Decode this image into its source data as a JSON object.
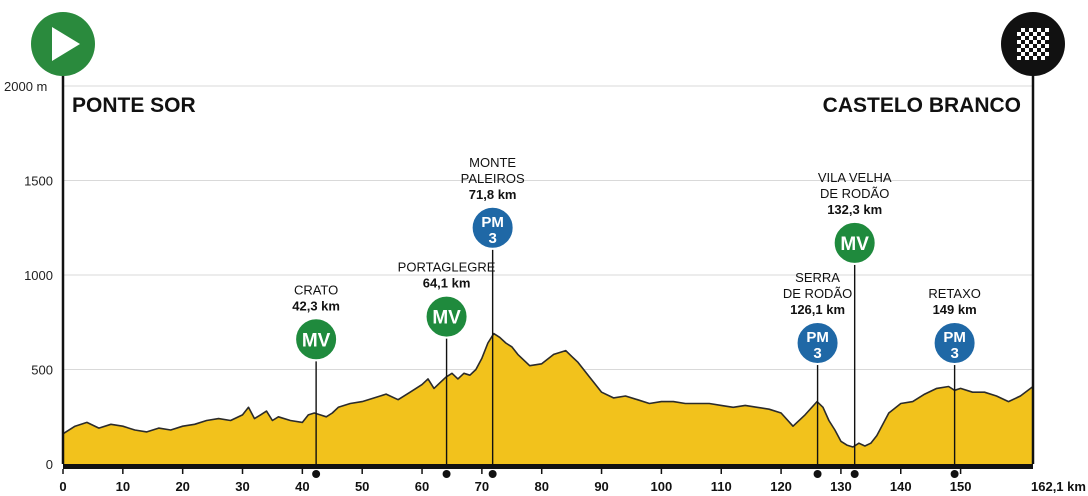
{
  "chart_data": {
    "type": "area",
    "title": "",
    "xlabel": "",
    "ylabel": "",
    "y_unit_label": "2000 m",
    "x_end_label": "162,1 km",
    "xlim": [
      0,
      162.1
    ],
    "ylim": [
      0,
      2000
    ],
    "x_ticks": [
      0,
      10,
      20,
      30,
      40,
      50,
      60,
      70,
      80,
      90,
      100,
      110,
      120,
      130,
      140,
      150
    ],
    "y_ticks": [
      0,
      500,
      1000,
      1500
    ],
    "grid": true,
    "start_town": "PONTE SOR",
    "finish_town": "CASTELO BRANCO",
    "colors": {
      "area": "#f2c21c",
      "outline": "#2b2b2b",
      "mv": "#1f8a3d",
      "pm": "#1f68a6",
      "start": "#2a8a3d"
    },
    "icons": {
      "start": "play-icon",
      "finish": "checkered-flag-icon"
    },
    "profile": {
      "x": [
        0,
        2,
        4,
        6,
        8,
        10,
        12,
        14,
        16,
        18,
        20,
        22,
        24,
        26,
        28,
        30,
        31,
        32,
        33,
        34,
        35,
        36,
        38,
        40,
        41,
        42,
        43,
        44,
        45,
        46,
        48,
        50,
        52,
        54,
        56,
        58,
        60,
        61,
        62,
        63,
        64,
        65,
        66,
        67,
        68,
        69,
        70,
        71,
        72,
        73,
        74,
        75,
        76,
        78,
        80,
        82,
        84,
        85,
        86,
        88,
        90,
        92,
        94,
        96,
        98,
        100,
        102,
        104,
        106,
        108,
        110,
        112,
        114,
        116,
        118,
        120,
        122,
        124,
        126,
        127,
        128,
        129,
        130,
        131,
        132,
        133,
        134,
        135,
        136,
        138,
        140,
        142,
        144,
        146,
        148,
        149,
        150,
        152,
        154,
        156,
        158,
        160,
        162.1
      ],
      "y": [
        160,
        200,
        220,
        190,
        210,
        200,
        180,
        170,
        190,
        180,
        200,
        210,
        230,
        240,
        230,
        260,
        300,
        240,
        260,
        280,
        230,
        250,
        230,
        220,
        260,
        270,
        260,
        250,
        270,
        300,
        320,
        330,
        350,
        370,
        340,
        380,
        420,
        450,
        400,
        430,
        460,
        480,
        450,
        480,
        470,
        500,
        560,
        640,
        690,
        670,
        640,
        620,
        580,
        520,
        530,
        580,
        600,
        570,
        540,
        460,
        380,
        350,
        360,
        340,
        320,
        330,
        330,
        320,
        320,
        320,
        310,
        300,
        310,
        300,
        290,
        270,
        200,
        260,
        330,
        300,
        230,
        180,
        120,
        100,
        90,
        110,
        95,
        110,
        150,
        270,
        320,
        330,
        370,
        400,
        410,
        390,
        400,
        380,
        380,
        360,
        330,
        360,
        410
      ]
    },
    "climbs": [
      {
        "name": "CRATO",
        "km_label": "42,3 km",
        "km": 42.3,
        "elev": 270,
        "badge": "MV",
        "cat": "",
        "badge_elev": 660
      },
      {
        "name": "PORTAGLEGRE",
        "km_label": "64,1 km",
        "km": 64.1,
        "elev": 460,
        "badge": "MV",
        "cat": "",
        "badge_elev": 780
      },
      {
        "name": "MONTE\nPALEIROS",
        "km_label": "71,8 km",
        "km": 71.8,
        "elev": 670,
        "badge": "PM",
        "cat": "3",
        "badge_elev": 1250
      },
      {
        "name": "SERRA\nDE RODÃO",
        "km_label": "126,1 km",
        "km": 126.1,
        "elev": 320,
        "badge": "PM",
        "cat": "3",
        "badge_elev": 640
      },
      {
        "name": "VILA VELHA\nDE RODÃO",
        "km_label": "132,3 km",
        "km": 132.3,
        "elev": 90,
        "badge": "MV",
        "cat": "",
        "badge_elev": 1170
      },
      {
        "name": "RETAXO",
        "km_label": "149 km",
        "km": 149,
        "elev": 400,
        "badge": "PM",
        "cat": "3",
        "badge_elev": 640
      }
    ]
  }
}
